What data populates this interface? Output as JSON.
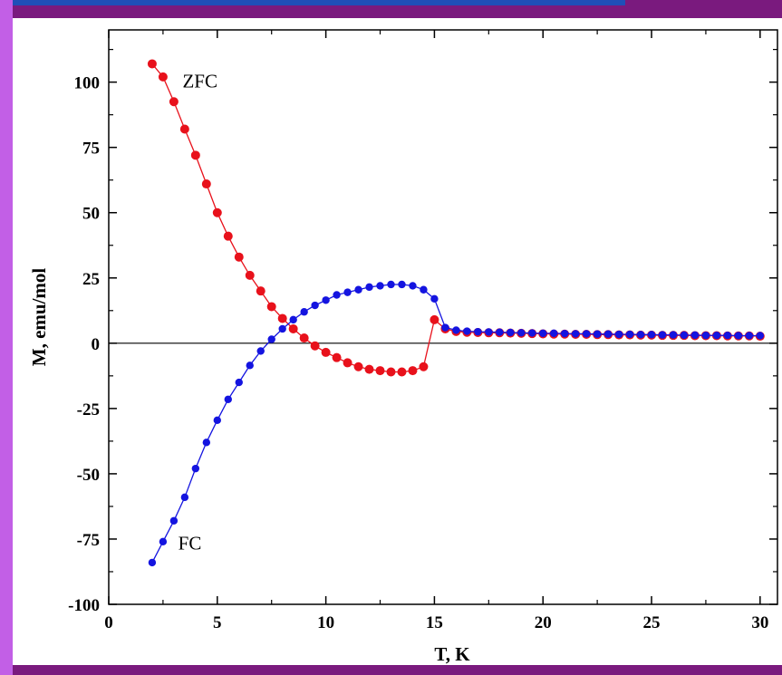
{
  "chart_data": {
    "type": "scatter",
    "xlabel": "T, K",
    "ylabel": "M, emu/mol",
    "xlim": [
      0,
      30.8
    ],
    "ylim": [
      -100,
      120
    ],
    "xticks": [
      0,
      5,
      10,
      15,
      20,
      25,
      30
    ],
    "xtick_labels": [
      "0",
      "5",
      "10",
      "15",
      "20",
      "25",
      "30"
    ],
    "yticks": [
      -100,
      -75,
      -50,
      -25,
      0,
      25,
      50,
      75,
      100
    ],
    "ytick_labels": [
      "-100",
      "-75",
      "-50",
      "-25",
      "0",
      "25",
      "50",
      "75",
      "100"
    ],
    "zero_line": true,
    "grid": false,
    "series": [
      {
        "name": "ZFC",
        "color": "#e8111b",
        "points": [
          [
            2,
            107
          ],
          [
            2.5,
            102
          ],
          [
            3,
            92.5
          ],
          [
            3.5,
            82
          ],
          [
            4,
            72
          ],
          [
            4.5,
            61
          ],
          [
            5,
            50
          ],
          [
            5.5,
            41
          ],
          [
            6,
            33
          ],
          [
            6.5,
            26
          ],
          [
            7,
            20
          ],
          [
            7.5,
            14
          ],
          [
            8,
            9.5
          ],
          [
            8.5,
            5.5
          ],
          [
            9,
            2
          ],
          [
            9.5,
            -1
          ],
          [
            10,
            -3.5
          ],
          [
            10.5,
            -5.5
          ],
          [
            11,
            -7.5
          ],
          [
            11.5,
            -9
          ],
          [
            12,
            -10
          ],
          [
            12.5,
            -10.5
          ],
          [
            13,
            -11
          ],
          [
            13.5,
            -11
          ],
          [
            14,
            -10.5
          ],
          [
            14.5,
            -9
          ],
          [
            15,
            9
          ],
          [
            15.5,
            5.5
          ],
          [
            16,
            4.5
          ],
          [
            16.5,
            4.2
          ],
          [
            17,
            4.1
          ],
          [
            17.5,
            4
          ],
          [
            18,
            4
          ],
          [
            18.5,
            3.9
          ],
          [
            19,
            3.8
          ],
          [
            19.5,
            3.7
          ],
          [
            20,
            3.6
          ],
          [
            20.5,
            3.5
          ],
          [
            21,
            3.5
          ],
          [
            21.5,
            3.4
          ],
          [
            22,
            3.4
          ],
          [
            22.5,
            3.3
          ],
          [
            23,
            3.3
          ],
          [
            23.5,
            3.2
          ],
          [
            24,
            3.2
          ],
          [
            24.5,
            3.1
          ],
          [
            25,
            3.1
          ],
          [
            25.5,
            3
          ],
          [
            26,
            3
          ],
          [
            26.5,
            3
          ],
          [
            27,
            2.9
          ],
          [
            27.5,
            2.9
          ],
          [
            28,
            2.9
          ],
          [
            28.5,
            2.8
          ],
          [
            29,
            2.8
          ],
          [
            29.5,
            2.8
          ],
          [
            30,
            2.7
          ]
        ]
      },
      {
        "name": "FC",
        "color": "#1414e0",
        "points": [
          [
            2,
            -84
          ],
          [
            2.5,
            -76
          ],
          [
            3,
            -68
          ],
          [
            3.5,
            -59
          ],
          [
            4,
            -48
          ],
          [
            4.5,
            -38
          ],
          [
            5,
            -29.5
          ],
          [
            5.5,
            -21.5
          ],
          [
            6,
            -15
          ],
          [
            6.5,
            -8.5
          ],
          [
            7,
            -3
          ],
          [
            7.5,
            1.5
          ],
          [
            8,
            5.5
          ],
          [
            8.5,
            9
          ],
          [
            9,
            12
          ],
          [
            9.5,
            14.5
          ],
          [
            10,
            16.5
          ],
          [
            10.5,
            18.5
          ],
          [
            11,
            19.5
          ],
          [
            11.5,
            20.5
          ],
          [
            12,
            21.5
          ],
          [
            12.5,
            22
          ],
          [
            13,
            22.5
          ],
          [
            13.5,
            22.5
          ],
          [
            14,
            22
          ],
          [
            14.5,
            20.5
          ],
          [
            15,
            17
          ],
          [
            15.5,
            6
          ],
          [
            16,
            5
          ],
          [
            16.5,
            4.6
          ],
          [
            17,
            4.4
          ],
          [
            17.5,
            4.3
          ],
          [
            18,
            4.2
          ],
          [
            18.5,
            4.1
          ],
          [
            19,
            4
          ],
          [
            19.5,
            3.9
          ],
          [
            20,
            3.8
          ],
          [
            20.5,
            3.8
          ],
          [
            21,
            3.7
          ],
          [
            21.5,
            3.6
          ],
          [
            22,
            3.6
          ],
          [
            22.5,
            3.5
          ],
          [
            23,
            3.5
          ],
          [
            23.5,
            3.4
          ],
          [
            24,
            3.4
          ],
          [
            24.5,
            3.3
          ],
          [
            25,
            3.3
          ],
          [
            25.5,
            3.2
          ],
          [
            26,
            3.2
          ],
          [
            26.5,
            3.1
          ],
          [
            27,
            3.1
          ],
          [
            27.5,
            3
          ],
          [
            28,
            3
          ],
          [
            28.5,
            3
          ],
          [
            29,
            2.9
          ],
          [
            29.5,
            2.9
          ],
          [
            30,
            2.9
          ]
        ]
      }
    ],
    "annotations": [
      {
        "text": "ZFC",
        "x": 3.4,
        "y": 100
      },
      {
        "text": "FC",
        "x": 3.2,
        "y": -77
      }
    ]
  }
}
